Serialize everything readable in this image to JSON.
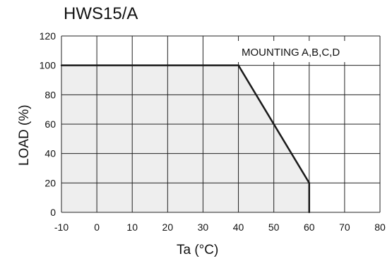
{
  "chart_data": {
    "type": "area",
    "title": "HWS15/A",
    "xlabel": "Ta (°C)",
    "ylabel": "LOAD (%)",
    "xlim": [
      -10,
      80
    ],
    "ylim": [
      0,
      120
    ],
    "x_ticks": [
      "-10",
      "0",
      "10",
      "20",
      "30",
      "40",
      "50",
      "60",
      "70",
      "80"
    ],
    "y_ticks": [
      "0",
      "20",
      "40",
      "60",
      "80",
      "100",
      "120"
    ],
    "grid": true,
    "annotation": "MOUNTING A,B,C,D",
    "series": [
      {
        "x": [
          -10,
          40,
          60,
          60
        ],
        "y": [
          100,
          100,
          20,
          0
        ]
      }
    ],
    "colors": {
      "fill": "#eeeeee",
      "line": "#1a1a1a",
      "grid": "#222222"
    }
  }
}
